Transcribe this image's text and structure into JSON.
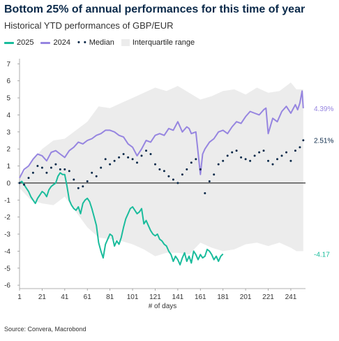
{
  "title": "Bottom 25% of annual performances for this time of year",
  "subtitle": "Historical YTD performances of GBP/EUR",
  "legend": {
    "s2025": "2025",
    "s2024": "2024",
    "median": "Median",
    "iqr": "Interquartile range"
  },
  "source": "Source: Convera, Macrobond",
  "colors": {
    "s2025": "#1abc9c",
    "s2024": "#9685e0",
    "median": "#0b2a4a",
    "iqr": "#ececec",
    "zero": "#333333"
  },
  "chart_data": {
    "type": "line",
    "xlabel": "# of days",
    "xlim": [
      1,
      254
    ],
    "ylim": [
      -6.2,
      7.3
    ],
    "xticks": [
      1,
      21,
      41,
      61,
      81,
      101,
      121,
      141,
      161,
      181,
      201,
      221,
      241
    ],
    "yticks": [
      -6,
      -5,
      -4,
      -3,
      -2,
      -1,
      0,
      1,
      2,
      3,
      4,
      5,
      6,
      7
    ],
    "end_labels": {
      "s2024": "4.39%",
      "median": "2.51%",
      "s2025": "-4.17"
    },
    "series": [
      {
        "name": "2025",
        "x": [
          1,
          3,
          5,
          7,
          9,
          11,
          13,
          15,
          17,
          19,
          21,
          23,
          25,
          27,
          29,
          31,
          33,
          35,
          37,
          39,
          41,
          43,
          45,
          47,
          49,
          51,
          53,
          55,
          57,
          59,
          61,
          63,
          65,
          67,
          69,
          71,
          73,
          75,
          77,
          79,
          81,
          83,
          85,
          87,
          89,
          91,
          93,
          95,
          97,
          99,
          101,
          103,
          105,
          107,
          109,
          111,
          113,
          115,
          117,
          119,
          121,
          123,
          125,
          127,
          129,
          131,
          133,
          135,
          137,
          139,
          141,
          143,
          145,
          147,
          149,
          151,
          153,
          155,
          157,
          159,
          161,
          163,
          165,
          167,
          169,
          171,
          173,
          175,
          177,
          179,
          181
        ],
        "y": [
          0,
          0.1,
          -0.1,
          -0.3,
          -0.5,
          -0.8,
          -1.0,
          -1.2,
          -0.9,
          -0.7,
          -0.5,
          -0.6,
          -0.8,
          -0.4,
          -0.2,
          -0.1,
          0.0,
          0.4,
          0.6,
          0.5,
          0.5,
          -0.2,
          -1.0,
          -1.3,
          -1.5,
          -1.6,
          -1.4,
          -1.8,
          -1.2,
          -1.0,
          -0.9,
          -1.1,
          -1.5,
          -2.0,
          -2.5,
          -3.5,
          -4.0,
          -4.4,
          -3.6,
          -3.3,
          -3.0,
          -3.1,
          -3.7,
          -3.4,
          -3.6,
          -3.2,
          -2.6,
          -2.1,
          -1.8,
          -1.5,
          -1.4,
          -1.6,
          -1.8,
          -1.7,
          -1.5,
          -2.4,
          -2.2,
          -2.5,
          -2.8,
          -3.0,
          -3.1,
          -3.0,
          -3.3,
          -3.4,
          -3.6,
          -3.7,
          -4.0,
          -4.2,
          -4.6,
          -4.3,
          -4.5,
          -4.8,
          -4.4,
          -4.1,
          -4.6,
          -4.3,
          -4.7,
          -4.0,
          -4.2,
          -4.5,
          -4.2,
          -4.4,
          -4.3,
          -3.9,
          -4.0,
          -4.2,
          -4.5,
          -4.3,
          -4.6,
          -4.3,
          -4.17
        ]
      },
      {
        "name": "2024",
        "x": [
          1,
          5,
          9,
          13,
          17,
          21,
          25,
          29,
          33,
          37,
          41,
          45,
          49,
          53,
          57,
          61,
          65,
          69,
          73,
          77,
          81,
          85,
          89,
          93,
          97,
          101,
          105,
          109,
          113,
          117,
          121,
          125,
          129,
          133,
          137,
          141,
          145,
          149,
          151,
          153,
          157,
          161,
          163,
          165,
          169,
          173,
          177,
          181,
          185,
          189,
          193,
          197,
          201,
          205,
          209,
          213,
          217,
          219,
          221,
          225,
          229,
          233,
          237,
          241,
          245,
          247,
          249,
          251,
          252
        ],
        "y": [
          0.3,
          0.8,
          1.0,
          1.4,
          1.7,
          1.6,
          1.3,
          1.8,
          1.9,
          1.7,
          1.5,
          1.9,
          2.1,
          2.4,
          2.3,
          2.5,
          2.6,
          2.8,
          2.9,
          3.1,
          3.1,
          3.0,
          2.8,
          2.7,
          2.3,
          2.1,
          1.6,
          2.0,
          2.5,
          2.4,
          2.8,
          2.9,
          2.8,
          3.2,
          3.1,
          3.6,
          3.0,
          3.3,
          3.2,
          2.9,
          3.0,
          0.5,
          1.7,
          2.0,
          2.4,
          2.6,
          3.0,
          3.1,
          2.9,
          3.3,
          3.6,
          3.5,
          3.9,
          4.2,
          4.1,
          4.0,
          4.3,
          4.4,
          2.9,
          3.8,
          3.6,
          4.2,
          4.5,
          4.1,
          4.6,
          4.3,
          4.7,
          5.4,
          4.39
        ]
      },
      {
        "name": "Median",
        "x": [
          1,
          5,
          9,
          13,
          17,
          21,
          25,
          29,
          33,
          37,
          41,
          45,
          49,
          53,
          57,
          61,
          65,
          69,
          73,
          77,
          81,
          85,
          89,
          93,
          97,
          101,
          105,
          109,
          113,
          117,
          121,
          125,
          129,
          133,
          137,
          141,
          145,
          149,
          153,
          157,
          161,
          165,
          169,
          173,
          177,
          181,
          185,
          189,
          193,
          197,
          201,
          205,
          209,
          213,
          217,
          221,
          225,
          229,
          233,
          237,
          241,
          245,
          249,
          252
        ],
        "y": [
          0,
          -0.1,
          0.3,
          0.6,
          1.0,
          0.9,
          0.6,
          0.9,
          1.1,
          0.8,
          0.8,
          0.7,
          0.2,
          -0.3,
          -0.2,
          0.1,
          0.6,
          0.4,
          0.9,
          1.4,
          1.1,
          1.3,
          1.5,
          1.7,
          1.5,
          1.4,
          1.2,
          1.6,
          1.9,
          1.7,
          1.1,
          0.8,
          0.7,
          0.4,
          0.2,
          0.0,
          0.5,
          0.8,
          1.2,
          1.4,
          0.8,
          -0.6,
          0.1,
          0.5,
          1.1,
          1.3,
          1.6,
          1.8,
          1.9,
          1.5,
          1.4,
          1.3,
          1.6,
          1.8,
          1.9,
          1.3,
          1.1,
          1.4,
          1.6,
          1.8,
          1.3,
          1.9,
          2.1,
          2.51
        ]
      },
      {
        "name": "Interquartile range",
        "x": [
          1,
          11,
          21,
          31,
          41,
          51,
          61,
          71,
          81,
          91,
          101,
          111,
          121,
          131,
          141,
          151,
          161,
          171,
          181,
          191,
          201,
          211,
          221,
          231,
          241,
          246,
          252
        ],
        "upper": [
          0.3,
          1.2,
          2.0,
          2.5,
          2.6,
          3.1,
          3.6,
          4.5,
          4.4,
          4.7,
          5.0,
          5.3,
          5.6,
          5.4,
          5.7,
          5.3,
          4.9,
          5.1,
          5.4,
          5.5,
          5.2,
          5.6,
          5.3,
          5.4,
          5.9,
          5.5,
          5.5
        ],
        "lower": [
          -0.3,
          -1.0,
          -1.2,
          -1.3,
          -0.8,
          -1.7,
          -2.6,
          -3.2,
          -3.3,
          -3.4,
          -3.6,
          -3.9,
          -4.3,
          -4.1,
          -4.1,
          -4.2,
          -3.5,
          -3.8,
          -4.0,
          -3.9,
          -3.6,
          -3.5,
          -3.7,
          -3.5,
          -3.8,
          -4.0,
          -4.0
        ]
      }
    ]
  }
}
